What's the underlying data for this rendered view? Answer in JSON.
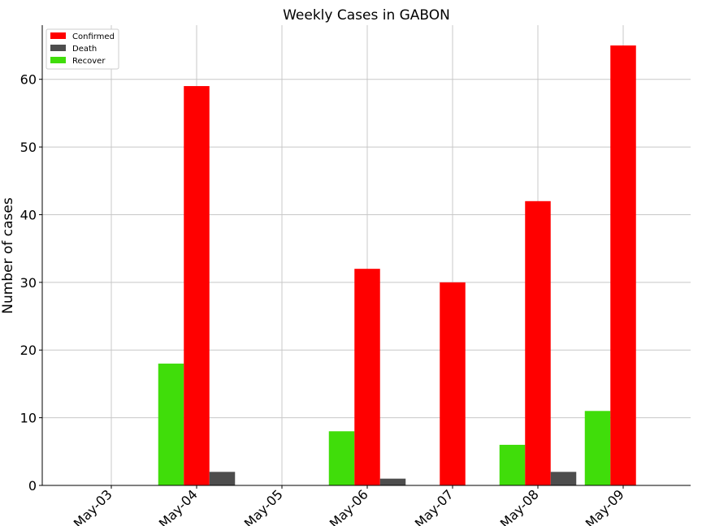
{
  "chart_data": {
    "type": "bar",
    "title": "Weekly Cases in GABON",
    "xlabel": "",
    "ylabel": "Number of cases",
    "categories": [
      "May-03",
      "May-04",
      "May-05",
      "May-06",
      "May-07",
      "May-08",
      "May-09"
    ],
    "series": [
      {
        "name": "Recover",
        "color": "#40dd0a",
        "values": [
          0,
          18,
          0,
          8,
          0,
          6,
          11
        ]
      },
      {
        "name": "Confirmed",
        "color": "#ff0000",
        "values": [
          0,
          59,
          0,
          32,
          30,
          42,
          65
        ]
      },
      {
        "name": "Death",
        "color": "#4d4d4d",
        "values": [
          0,
          2,
          0,
          1,
          0,
          2,
          0
        ]
      }
    ],
    "legend_order": [
      "Confirmed",
      "Death",
      "Recover"
    ],
    "legend_position": "top-left",
    "ylim": [
      0,
      68
    ],
    "yticks": [
      0,
      10,
      20,
      30,
      40,
      50,
      60
    ],
    "ytick_labels": [
      "0",
      "10",
      "20",
      "30",
      "40",
      "50",
      "60"
    ],
    "grid": true,
    "x_tick_rotation": "45 degrees"
  }
}
